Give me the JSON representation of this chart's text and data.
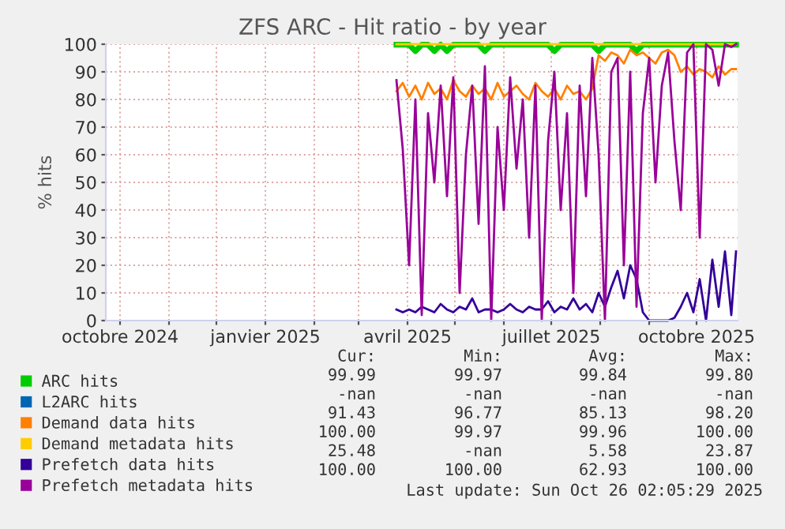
{
  "chart_data": {
    "type": "line",
    "title": "ZFS ARC - Hit ratio - by year",
    "ylabel": "% hits",
    "x": [
      "2025-03-25",
      "2025-03-29",
      "2025-04-02",
      "2025-04-06",
      "2025-04-10",
      "2025-04-14",
      "2025-04-18",
      "2025-04-22",
      "2025-04-26",
      "2025-04-30",
      "2025-05-04",
      "2025-05-08",
      "2025-05-12",
      "2025-05-16",
      "2025-05-20",
      "2025-05-24",
      "2025-05-28",
      "2025-06-01",
      "2025-06-05",
      "2025-06-09",
      "2025-06-13",
      "2025-06-17",
      "2025-06-21",
      "2025-06-25",
      "2025-06-29",
      "2025-07-03",
      "2025-07-07",
      "2025-07-11",
      "2025-07-15",
      "2025-07-19",
      "2025-07-23",
      "2025-07-27",
      "2025-07-31",
      "2025-08-04",
      "2025-08-08",
      "2025-08-12",
      "2025-08-16",
      "2025-08-20",
      "2025-08-24",
      "2025-08-28",
      "2025-09-01",
      "2025-09-05",
      "2025-09-09",
      "2025-09-13",
      "2025-09-17",
      "2025-09-21",
      "2025-09-25",
      "2025-09-29",
      "2025-10-03",
      "2025-10-07",
      "2025-10-11",
      "2025-10-15",
      "2025-10-19",
      "2025-10-23",
      "2025-10-26"
    ],
    "series": [
      {
        "name": "ARC hits",
        "color": "#00cc00",
        "values": [
          99.8,
          99.8,
          99.8,
          97.5,
          99.8,
          99.8,
          97.5,
          99.8,
          97.5,
          99.8,
          99.8,
          99.8,
          99.8,
          99.8,
          97.5,
          99.8,
          99.8,
          99.8,
          99.8,
          99.8,
          99.8,
          99.8,
          99.8,
          99.8,
          99.8,
          97.5,
          99.8,
          99.8,
          99.8,
          99.8,
          99.8,
          99.8,
          97.5,
          99.8,
          99.8,
          99.8,
          99.8,
          99.8,
          97.5,
          99.8,
          99.8,
          99.8,
          99.8,
          99.8,
          99.8,
          99.8,
          99.8,
          99.8,
          99.8,
          99.8,
          99.8,
          99.8,
          99.8,
          99.8,
          99.8
        ]
      },
      {
        "name": "L2ARC hits",
        "color": "#0066b3",
        "values": [
          null,
          null,
          null,
          null,
          null,
          null,
          null,
          null,
          null,
          null,
          null,
          null,
          null,
          null,
          null,
          null,
          null,
          null,
          null,
          null,
          null,
          null,
          null,
          null,
          null,
          null,
          null,
          null,
          null,
          null,
          null,
          null,
          null,
          null,
          null,
          null,
          null,
          null,
          null,
          null,
          null,
          null,
          null,
          null,
          null,
          null,
          null,
          null,
          null,
          null,
          null,
          null,
          null,
          null,
          null
        ]
      },
      {
        "name": "Demand data hits",
        "color": "#ff8000",
        "values": [
          83,
          86,
          81,
          85,
          80,
          86,
          82,
          84,
          80,
          87,
          83,
          81,
          85,
          82,
          84,
          80,
          86,
          81,
          83,
          85,
          82,
          80,
          86,
          83,
          81,
          84,
          80,
          85,
          82,
          83,
          80,
          84,
          96,
          94,
          97,
          96,
          93,
          98,
          96,
          97,
          95,
          93,
          97,
          98,
          96,
          90,
          92,
          89,
          91,
          90,
          88,
          92,
          89,
          91,
          91
        ]
      },
      {
        "name": "Demand metadata hits",
        "color": "#ffcc00",
        "values": [
          100,
          100,
          100,
          100,
          100,
          100,
          100,
          100,
          100,
          100,
          100,
          100,
          100,
          100,
          100,
          100,
          100,
          100,
          100,
          100,
          100,
          100,
          100,
          100,
          100,
          100,
          100,
          100,
          100,
          100,
          100,
          100,
          100,
          100,
          100,
          100,
          100,
          100,
          100,
          100,
          100,
          100,
          100,
          100,
          100,
          100,
          100,
          100,
          100,
          100,
          100,
          100,
          100,
          100,
          100
        ]
      },
      {
        "name": "Prefetch data hits",
        "color": "#330099",
        "values": [
          4,
          3,
          4,
          3,
          5,
          4,
          3,
          6,
          4,
          3,
          5,
          4,
          8,
          3,
          4,
          4,
          3,
          4,
          6,
          4,
          3,
          5,
          4,
          4,
          7,
          3,
          5,
          4,
          8,
          4,
          6,
          3,
          10,
          5,
          12,
          18,
          8,
          20,
          15,
          3,
          0,
          0,
          0,
          0,
          1,
          5,
          10,
          3,
          15,
          0,
          22,
          5,
          25,
          2,
          25
        ]
      },
      {
        "name": "Prefetch metadata hits",
        "color": "#990099",
        "values": [
          87,
          62,
          20,
          80,
          2,
          75,
          50,
          85,
          45,
          88,
          10,
          60,
          85,
          35,
          92,
          0,
          70,
          40,
          88,
          55,
          80,
          30,
          85,
          0,
          65,
          90,
          40,
          75,
          10,
          85,
          45,
          95,
          60,
          0,
          90,
          95,
          20,
          90,
          5,
          75,
          95,
          50,
          85,
          97,
          65,
          40,
          97,
          100,
          30,
          100,
          98,
          85,
          100,
          99,
          100
        ]
      }
    ],
    "xlim": [
      "2024-09-22",
      "2025-10-27"
    ],
    "xticks": [
      {
        "value": "2024-10-01",
        "label": "octobre 2024"
      },
      {
        "value": "2024-11-01",
        "label": null
      },
      {
        "value": "2024-12-01",
        "label": null
      },
      {
        "value": "2025-01-01",
        "label": "janvier 2025"
      },
      {
        "value": "2025-02-01",
        "label": null
      },
      {
        "value": "2025-03-01",
        "label": null
      },
      {
        "value": "2025-04-01",
        "label": "avril 2025"
      },
      {
        "value": "2025-05-01",
        "label": null
      },
      {
        "value": "2025-06-01",
        "label": null
      },
      {
        "value": "2025-07-01",
        "label": "juillet 2025"
      },
      {
        "value": "2025-08-01",
        "label": null
      },
      {
        "value": "2025-09-01",
        "label": null
      },
      {
        "value": "2025-10-01",
        "label": "octobre 2025"
      }
    ],
    "ylim": [
      0,
      100
    ],
    "yticks": [
      0,
      10,
      20,
      30,
      40,
      50,
      60,
      70,
      80,
      90,
      100
    ],
    "grid": true,
    "legend": "bottom",
    "marker": "none",
    "line_style": "solid",
    "annotations": [
      "Cur:",
      "Min:",
      "Avg:",
      "Max:",
      "99.99",
      "99.97",
      "99.84",
      "99.80",
      "-nan",
      "-nan",
      "-nan",
      "-nan",
      "91.43",
      "96.77",
      "85.13",
      "98.20",
      "100.00",
      "99.97",
      "99.96",
      "100.00",
      "25.48",
      "-nan",
      "5.58",
      "23.87",
      "100.00",
      "100.00",
      "62.93",
      "100.00",
      "Last update: Sun Oct 26 02:05:29 2025"
    ]
  }
}
